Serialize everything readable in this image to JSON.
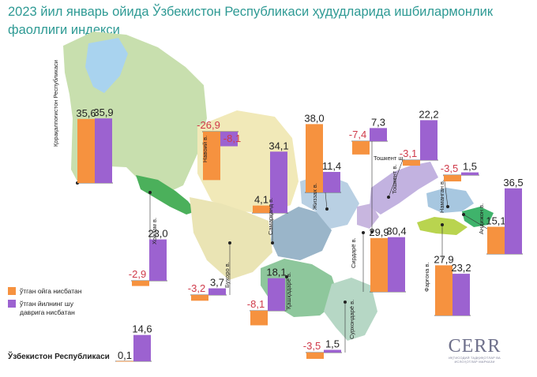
{
  "title": "2023 йил январь ойида Ўзбекистон Республикаси ҳудудларида ишбилармонлик фаоллиги индекси",
  "colors": {
    "orange": "#f6923f",
    "purple": "#9c62d0",
    "negative": "#cf3a4a",
    "positive": "#222222",
    "title": "#2e9a94"
  },
  "legend": {
    "orange_label": "ўтган ойга нисбатан",
    "purple_label": "ўтган йилнинг шу даврига нисбатан"
  },
  "country_label": "Ўзбекистон Республикаси",
  "logo": {
    "name": "CERR",
    "subtitle": "ИҚТИСОДИЙ ТАДҚИҚОТЛАР ВА ИСЛОҲОТЛАР МАРКАЗИ"
  },
  "chart_data": {
    "type": "bar",
    "title": "2023 йил январь ойида Ўзбекистон Республикаси ҳудудларида ишбилармонлик фаоллиги индекси",
    "series": [
      {
        "name": "ўтган ойга нисбатан",
        "color": "#f6923f"
      },
      {
        "name": "ўтган йилнинг шу даврига нисбатан",
        "color": "#9c62d0"
      }
    ],
    "regions": [
      {
        "name": "Қорақалпоғистон Республикаси",
        "values": [
          35.6,
          35.9
        ],
        "labels": [
          "35,6",
          "35,9"
        ]
      },
      {
        "name": "Навоий в.",
        "values": [
          -26.9,
          -8.1
        ],
        "labels": [
          "-26,9",
          "-8,1"
        ]
      },
      {
        "name": "Жиззах в.",
        "values": [
          38.0,
          11.4
        ],
        "labels": [
          "38,0",
          "11,4"
        ]
      },
      {
        "name": "Тошкент ш.",
        "values": [
          -7.4,
          7.3
        ],
        "labels": [
          "-7,4",
          "7,3"
        ]
      },
      {
        "name": "Тошкент в.",
        "values": [
          -3.1,
          22.2
        ],
        "labels": [
          "-3,1",
          "22,2"
        ]
      },
      {
        "name": "Наманган в.",
        "values": [
          -3.5,
          1.5
        ],
        "labels": [
          "-3,5",
          "1,5"
        ]
      },
      {
        "name": "Андижон в.",
        "values": [
          15.1,
          36.5
        ],
        "labels": [
          "15,1",
          "36,5"
        ]
      },
      {
        "name": "Самарқанд в.",
        "values": [
          4.1,
          34.1
        ],
        "labels": [
          "4,1",
          "34,1"
        ]
      },
      {
        "name": "Хоразм в.",
        "values": [
          -2.9,
          23.0
        ],
        "labels": [
          "-2,9",
          "23,0"
        ]
      },
      {
        "name": "Бухоро в.",
        "values": [
          -3.2,
          3.7
        ],
        "labels": [
          "-3,2",
          "3,7"
        ]
      },
      {
        "name": "Қашқадарё в.",
        "values": [
          -8.1,
          18.1
        ],
        "labels": [
          "-8,1",
          "18,1"
        ]
      },
      {
        "name": "Сурхондарё в.",
        "values": [
          -3.5,
          1.5
        ],
        "labels": [
          "-3,5",
          "1,5"
        ]
      },
      {
        "name": "Сирдарё в.",
        "values": [
          29.9,
          30.4
        ],
        "labels": [
          "29,9",
          "30,4"
        ]
      },
      {
        "name": "Фарғона в.",
        "values": [
          27.9,
          23.2
        ],
        "labels": [
          "27,9",
          "23,2"
        ]
      },
      {
        "name": "Ўзбекистон Республикаси",
        "values": [
          0.1,
          14.6
        ],
        "labels": [
          "0,1",
          "14,6"
        ]
      }
    ]
  }
}
